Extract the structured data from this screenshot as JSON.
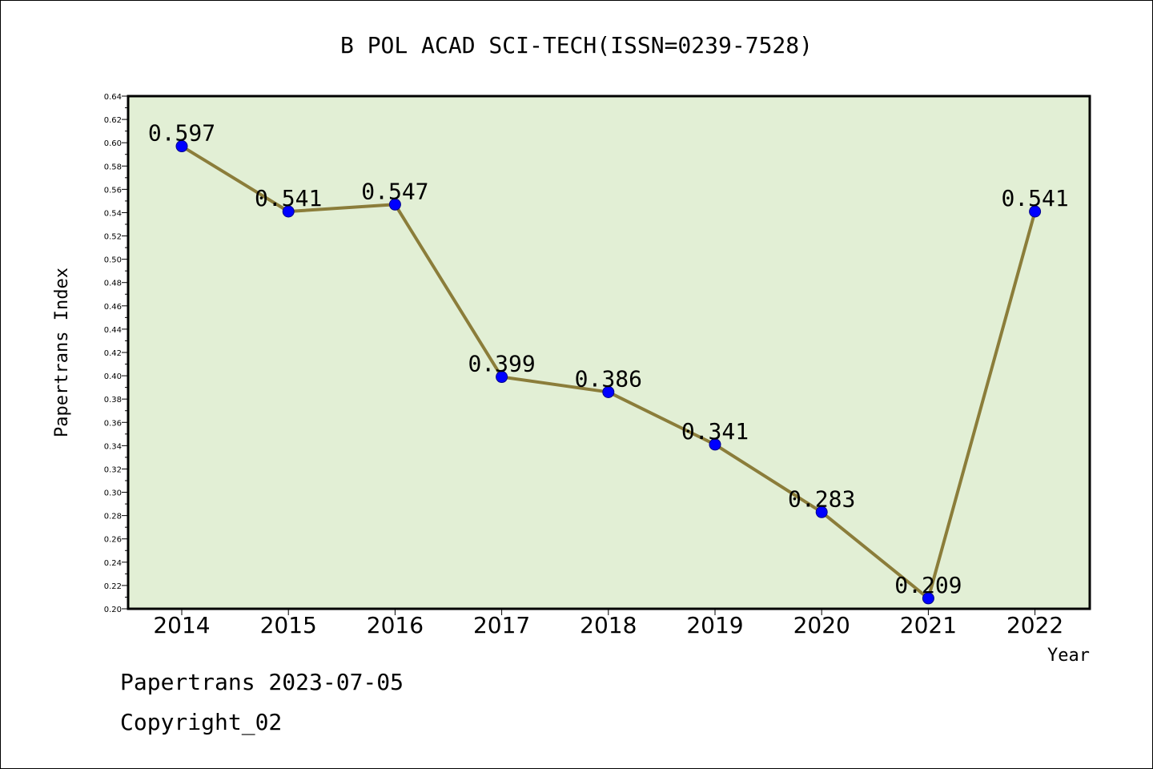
{
  "chart_data": {
    "type": "line",
    "title": "B POL ACAD SCI-TECH(ISSN=0239-7528)",
    "xlabel": "Year",
    "ylabel": "Papertrans Index",
    "categories": [
      "2014",
      "2015",
      "2016",
      "2017",
      "2018",
      "2019",
      "2020",
      "2021",
      "2022"
    ],
    "series": [
      {
        "values": [
          0.597,
          0.541,
          0.547,
          0.399,
          0.386,
          0.341,
          0.283,
          0.209,
          0.541
        ],
        "labels": [
          "0.597",
          "0.541",
          "0.547",
          "0.399",
          "0.386",
          "0.341",
          "0.283",
          "0.209",
          "0.541"
        ],
        "line_color": "#8b7d3a",
        "marker_color": "#0000ff"
      }
    ],
    "ylim": [
      0.2,
      0.64
    ],
    "yticks": [
      "0.20",
      "0.22",
      "0.24",
      "0.26",
      "0.28",
      "0.30",
      "0.32",
      "0.34",
      "0.36",
      "0.38",
      "0.40",
      "0.42",
      "0.44",
      "0.46",
      "0.48",
      "0.50",
      "0.52",
      "0.54",
      "0.56",
      "0.58",
      "0.60",
      "0.62",
      "0.64"
    ],
    "plot_background": "#e2efd5",
    "grid": false
  },
  "footer": {
    "line1": "Papertrans 2023-07-05",
    "line2": "Copyright_02"
  }
}
